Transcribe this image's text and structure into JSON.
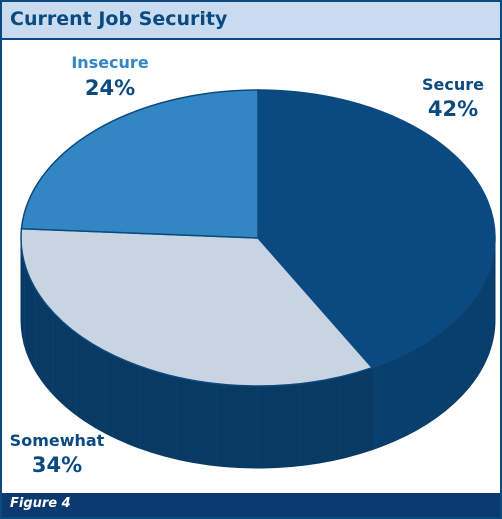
{
  "header": {
    "title": "Current Job Security"
  },
  "footer": {
    "caption": "Figure 4"
  },
  "colors": {
    "frame": "#0b4a80",
    "title_bg": "#c9dcef",
    "footer_bg": "#0b3a6e"
  },
  "chart_data": {
    "type": "pie",
    "title": "Current Job Security",
    "three_d": true,
    "slices": [
      {
        "label": "Secure",
        "value": 42,
        "value_label": "42%",
        "color": "#0b4a80"
      },
      {
        "label": "Somewhat",
        "value": 34,
        "value_label": "34%",
        "color": "#c8d4e2"
      },
      {
        "label": "Insecure",
        "value": 24,
        "value_label": "24%",
        "color": "#3286c3"
      }
    ]
  }
}
